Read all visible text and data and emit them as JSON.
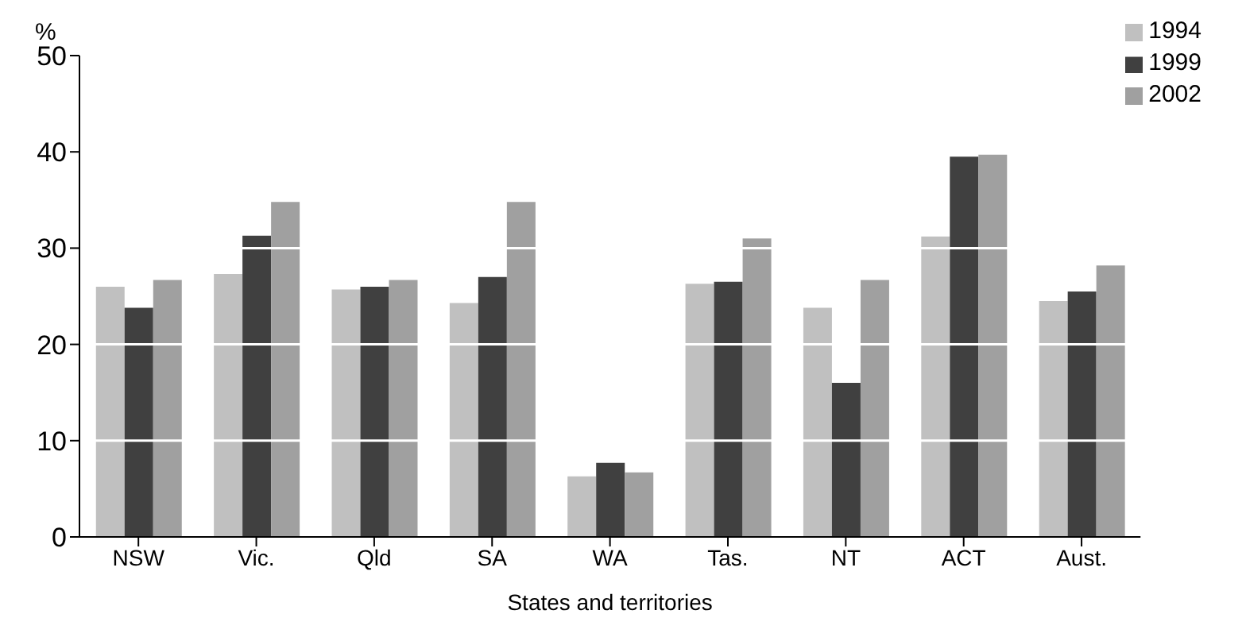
{
  "chart_data": {
    "type": "bar",
    "xlabel": "States and territories",
    "ylabel": "%",
    "categories": [
      "NSW",
      "Vic.",
      "Qld",
      "SA",
      "WA",
      "Tas.",
      "NT",
      "ACT",
      "Aust."
    ],
    "series": [
      {
        "name": "1994",
        "color": "#c0c0c0",
        "values": [
          26.0,
          27.3,
          25.7,
          24.3,
          6.3,
          26.3,
          23.8,
          31.2,
          24.5
        ]
      },
      {
        "name": "1999",
        "color": "#404040",
        "values": [
          23.8,
          31.3,
          26.0,
          27.0,
          7.7,
          26.5,
          16.0,
          39.5,
          25.5
        ]
      },
      {
        "name": "2002",
        "color": "#a0a0a0",
        "values": [
          26.7,
          34.8,
          26.7,
          34.8,
          6.7,
          31.0,
          26.7,
          39.7,
          28.2
        ]
      }
    ],
    "ylim": [
      0,
      50
    ],
    "yticks": [
      0,
      10,
      20,
      30,
      40,
      50
    ],
    "grid": "y",
    "legend": "top right"
  }
}
